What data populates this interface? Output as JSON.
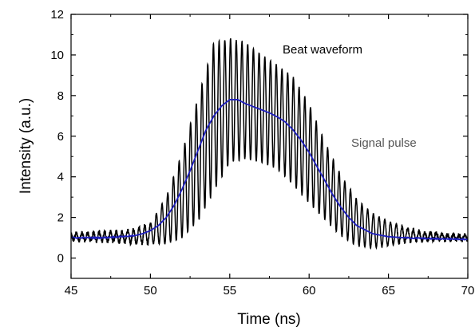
{
  "chart_data": {
    "type": "line",
    "title": "",
    "xlabel": "Time (ns)",
    "ylabel": "Intensity (a.u.)",
    "xlim": [
      45,
      70
    ],
    "ylim": [
      -1,
      12
    ],
    "x_ticks": [
      "45",
      "50",
      "55",
      "60",
      "65",
      "70"
    ],
    "y_ticks": [
      "0",
      "2",
      "4",
      "6",
      "8",
      "10",
      "12"
    ],
    "grid": false,
    "legend": "none",
    "annotations": [
      {
        "text": "Beat waveform",
        "x": 57.0,
        "y": 10.3,
        "color": "#000000"
      },
      {
        "text": "Signal pulse",
        "x": 60.6,
        "y": 5.8,
        "color": "#555555"
      }
    ],
    "series": [
      {
        "color": "#000000",
        "style": "oscillating",
        "beat_period_ns": 0.36,
        "baseline": 1.0,
        "noise": 0.12,
        "envelope_peaks": [
          [
            45.0,
            1.2
          ],
          [
            48.0,
            1.3
          ],
          [
            49.0,
            1.4
          ],
          [
            50.0,
            1.7
          ],
          [
            51.0,
            3.0
          ],
          [
            52.0,
            5.2
          ],
          [
            53.0,
            7.9
          ],
          [
            54.0,
            10.6
          ],
          [
            55.0,
            10.8
          ],
          [
            56.0,
            10.6
          ],
          [
            57.0,
            10.0
          ],
          [
            58.0,
            9.5
          ],
          [
            59.0,
            8.9
          ],
          [
            60.0,
            7.6
          ],
          [
            61.0,
            5.7
          ],
          [
            62.0,
            4.1
          ],
          [
            63.0,
            2.9
          ],
          [
            64.0,
            2.2
          ],
          [
            65.0,
            1.8
          ],
          [
            66.0,
            1.5
          ],
          [
            67.0,
            1.3
          ],
          [
            68.0,
            1.2
          ],
          [
            70.0,
            1.1
          ]
        ],
        "envelope_troughs": [
          [
            45.0,
            0.9
          ],
          [
            48.0,
            0.8
          ],
          [
            50.0,
            0.7
          ],
          [
            51.0,
            0.7
          ],
          [
            52.0,
            1.0
          ],
          [
            53.0,
            1.8
          ],
          [
            54.0,
            3.3
          ],
          [
            55.0,
            4.7
          ],
          [
            56.0,
            4.9
          ],
          [
            57.0,
            4.7
          ],
          [
            58.0,
            4.4
          ],
          [
            59.0,
            3.6
          ],
          [
            60.0,
            2.7
          ],
          [
            61.0,
            1.9
          ],
          [
            62.0,
            1.1
          ],
          [
            63.0,
            0.6
          ],
          [
            64.0,
            0.5
          ],
          [
            65.0,
            0.6
          ],
          [
            66.0,
            0.8
          ],
          [
            68.0,
            0.9
          ],
          [
            70.0,
            0.9
          ]
        ]
      },
      {
        "color": "#1f1fbf",
        "style": "smooth",
        "x": [
          45,
          47,
          48,
          49,
          49.5,
          50,
          50.5,
          51,
          51.5,
          52,
          52.5,
          53,
          53.5,
          54,
          54.5,
          55,
          55.5,
          56,
          56.5,
          57,
          57.5,
          58,
          58.5,
          59,
          59.5,
          60,
          60.5,
          61,
          61.5,
          62,
          62.5,
          63,
          64,
          65,
          66,
          67,
          68,
          70
        ],
        "y": [
          1.0,
          1.0,
          1.05,
          1.1,
          1.2,
          1.35,
          1.6,
          2.0,
          2.6,
          3.4,
          4.3,
          5.3,
          6.3,
          7.0,
          7.5,
          7.8,
          7.8,
          7.6,
          7.45,
          7.3,
          7.15,
          6.95,
          6.7,
          6.3,
          5.8,
          5.2,
          4.5,
          3.8,
          3.1,
          2.5,
          2.0,
          1.6,
          1.2,
          1.05,
          1.0,
          0.97,
          0.95,
          0.93
        ]
      }
    ]
  }
}
